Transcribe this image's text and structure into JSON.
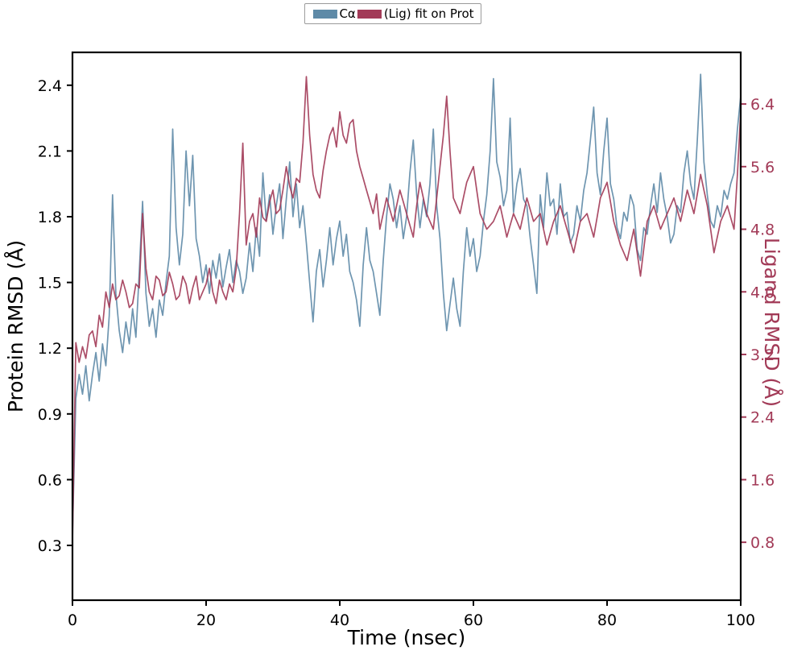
{
  "legend": {
    "entries": [
      "Cα",
      "(Lig) fit on Prot"
    ]
  },
  "colors": {
    "protein": "#5e8aa7",
    "ligand": "#a23a57",
    "spine": "#000000",
    "background": "#ffffff"
  },
  "chart_data": {
    "type": "line",
    "title": "",
    "xlabel": "Time (nsec)",
    "xlim": [
      0,
      100
    ],
    "x": {
      "start": 0,
      "step": 0.5
    },
    "x_tick_values": [
      0,
      20,
      40,
      60,
      80,
      100
    ],
    "x_tick_labels": [
      "0",
      "20",
      "40",
      "60",
      "80",
      "100"
    ],
    "grid": false,
    "legend_position": "top-center",
    "axes": {
      "left": {
        "label": "Protein RMSD (Å)",
        "lim": [
          0.05,
          2.55
        ],
        "tick_values": [
          0.3,
          0.6,
          0.9,
          1.2,
          1.5,
          1.8,
          2.1,
          2.4
        ],
        "tick_labels": [
          "0.3",
          "0.6",
          "0.9",
          "1.2",
          "1.5",
          "1.8",
          "2.1",
          "2.4"
        ],
        "color": "#000000"
      },
      "right": {
        "label": "Ligand RMSD (Å)",
        "lim": [
          0.06,
          7.06
        ],
        "tick_values": [
          0.8,
          1.6,
          2.4,
          3.2,
          4.0,
          4.8,
          5.6,
          6.4
        ],
        "tick_labels": [
          "0.8",
          "1.6",
          "2.4",
          "3.2",
          "4.0",
          "4.8",
          "5.6",
          "6.4"
        ],
        "color": "#a23a57"
      }
    },
    "series": [
      {
        "name": "Cα",
        "axis": "left",
        "color": "#5e8aa7",
        "values": [
          0.35,
          0.97,
          1.08,
          0.99,
          1.12,
          0.96,
          1.08,
          1.18,
          1.05,
          1.22,
          1.12,
          1.35,
          1.9,
          1.45,
          1.28,
          1.18,
          1.32,
          1.22,
          1.38,
          1.25,
          1.55,
          1.87,
          1.45,
          1.3,
          1.38,
          1.25,
          1.42,
          1.35,
          1.5,
          1.62,
          2.2,
          1.75,
          1.58,
          1.72,
          2.1,
          1.85,
          2.08,
          1.7,
          1.62,
          1.5,
          1.58,
          1.45,
          1.6,
          1.52,
          1.63,
          1.48,
          1.57,
          1.65,
          1.5,
          1.6,
          1.55,
          1.45,
          1.52,
          1.68,
          1.55,
          1.75,
          1.62,
          2.0,
          1.78,
          1.9,
          1.72,
          1.85,
          1.95,
          1.7,
          1.88,
          2.05,
          1.8,
          1.95,
          1.75,
          1.85,
          1.68,
          1.5,
          1.32,
          1.55,
          1.65,
          1.48,
          1.6,
          1.75,
          1.58,
          1.7,
          1.78,
          1.62,
          1.72,
          1.55,
          1.5,
          1.42,
          1.3,
          1.58,
          1.75,
          1.6,
          1.55,
          1.45,
          1.35,
          1.6,
          1.8,
          1.95,
          1.88,
          1.75,
          1.85,
          1.7,
          1.8,
          2.0,
          2.15,
          1.9,
          1.75,
          1.88,
          1.8,
          1.95,
          2.2,
          1.85,
          1.7,
          1.45,
          1.28,
          1.4,
          1.52,
          1.38,
          1.3,
          1.55,
          1.75,
          1.62,
          1.7,
          1.55,
          1.62,
          1.78,
          1.9,
          2.1,
          2.43,
          2.05,
          1.98,
          1.85,
          1.92,
          2.25,
          1.82,
          1.95,
          2.02,
          1.88,
          1.85,
          1.7,
          1.58,
          1.45,
          1.9,
          1.75,
          2.0,
          1.85,
          1.88,
          1.72,
          1.95,
          1.8,
          1.82,
          1.68,
          1.72,
          1.85,
          1.78,
          1.92,
          2.0,
          2.15,
          2.3,
          2.0,
          1.9,
          2.1,
          2.25,
          1.95,
          1.88,
          1.75,
          1.7,
          1.82,
          1.78,
          1.9,
          1.85,
          1.65,
          1.6,
          1.75,
          1.72,
          1.85,
          1.95,
          1.82,
          2.0,
          1.88,
          1.8,
          1.68,
          1.72,
          1.85,
          1.82,
          2.0,
          2.1,
          1.95,
          1.88,
          2.15,
          2.45,
          2.05,
          1.9,
          1.78,
          1.75,
          1.85,
          1.8,
          1.92,
          1.88,
          1.95,
          2.0,
          2.2,
          2.35
        ]
      },
      {
        "name": "(Lig) fit on Prot",
        "axis": "right",
        "color": "#a23a57",
        "values": [
          0.8,
          3.35,
          3.1,
          3.3,
          3.15,
          3.45,
          3.5,
          3.3,
          3.7,
          3.55,
          4.0,
          3.8,
          4.1,
          3.9,
          3.95,
          4.15,
          4.0,
          3.8,
          3.85,
          4.1,
          4.05,
          5.0,
          4.3,
          4.0,
          3.9,
          4.2,
          4.15,
          3.95,
          4.0,
          4.25,
          4.1,
          3.9,
          3.95,
          4.2,
          4.1,
          3.85,
          4.05,
          4.2,
          3.9,
          4.0,
          4.1,
          4.3,
          4.0,
          3.85,
          4.15,
          4.0,
          3.9,
          4.1,
          4.0,
          4.3,
          5.0,
          5.9,
          4.6,
          4.9,
          5.0,
          4.7,
          5.2,
          4.95,
          4.9,
          5.15,
          5.3,
          5.0,
          5.05,
          5.3,
          5.6,
          5.35,
          5.2,
          5.45,
          5.4,
          5.9,
          6.75,
          6.0,
          5.5,
          5.3,
          5.2,
          5.55,
          5.8,
          6.0,
          6.1,
          5.85,
          6.3,
          6.0,
          5.9,
          6.15,
          6.2,
          5.8,
          5.6,
          5.45,
          5.3,
          5.15,
          5.0,
          5.25,
          4.8,
          5.0,
          5.2,
          5.05,
          4.9,
          5.1,
          5.3,
          5.15,
          5.0,
          4.85,
          4.7,
          5.1,
          5.4,
          5.2,
          5.0,
          4.9,
          4.8,
          5.2,
          5.6,
          6.0,
          6.5,
          5.8,
          5.2,
          5.1,
          5.0,
          5.2,
          5.4,
          5.5,
          5.6,
          5.3,
          5.0,
          4.9,
          4.8,
          4.85,
          4.9,
          5.0,
          5.1,
          4.9,
          4.7,
          4.85,
          5.0,
          4.9,
          4.8,
          5.0,
          5.2,
          5.05,
          4.9,
          4.95,
          5.0,
          4.8,
          4.6,
          4.75,
          4.9,
          5.0,
          5.1,
          4.95,
          4.8,
          4.65,
          4.5,
          4.7,
          4.9,
          4.95,
          5.0,
          4.85,
          4.7,
          4.95,
          5.2,
          5.3,
          5.4,
          5.15,
          4.9,
          4.75,
          4.6,
          4.5,
          4.4,
          4.6,
          4.8,
          4.5,
          4.2,
          4.55,
          4.9,
          5.0,
          5.1,
          4.95,
          4.8,
          4.9,
          5.0,
          5.1,
          5.2,
          5.05,
          4.9,
          5.1,
          5.3,
          5.15,
          5.0,
          5.25,
          5.5,
          5.3,
          5.1,
          4.8,
          4.5,
          4.7,
          4.9,
          5.0,
          5.1,
          4.95,
          4.8,
          5.5,
          6.3
        ]
      }
    ]
  }
}
